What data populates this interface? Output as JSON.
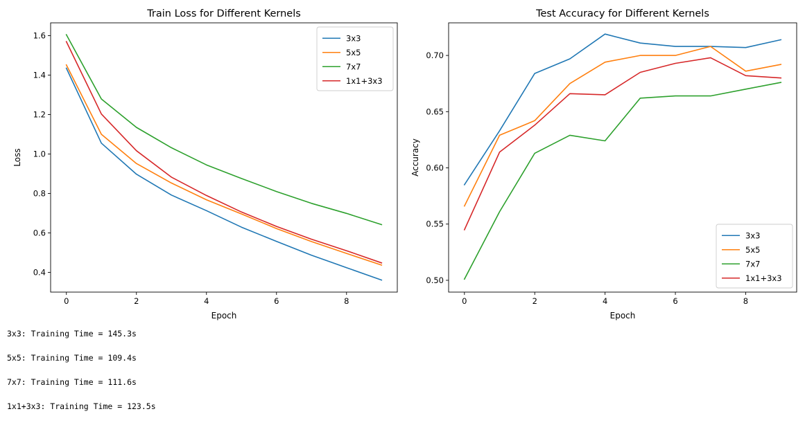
{
  "colors": {
    "3x3": "#1f77b4",
    "5x5": "#ff7f0e",
    "7x7": "#2ca02c",
    "1x1+3x3": "#d62728"
  },
  "chart_data": [
    {
      "type": "line",
      "title": "Train Loss for Different Kernels",
      "xlabel": "Epoch",
      "ylabel": "Loss",
      "x": [
        0,
        1,
        2,
        3,
        4,
        5,
        6,
        7,
        8,
        9
      ],
      "xlim": [
        -0.45,
        9.45
      ],
      "ylim": [
        0.3,
        1.665
      ],
      "xticks": [
        0,
        2,
        4,
        6,
        8
      ],
      "xtick_labels": [
        "0",
        "2",
        "4",
        "6",
        "8"
      ],
      "yticks": [
        0.4,
        0.6,
        0.8,
        1.0,
        1.2,
        1.4,
        1.6
      ],
      "ytick_labels": [
        "0.4",
        "0.6",
        "0.8",
        "1.0",
        "1.2",
        "1.4",
        "1.6"
      ],
      "legend_position": "upper right",
      "grid": false,
      "series": [
        {
          "name": "3x3",
          "color": "#1f77b4",
          "values": [
            1.435,
            1.055,
            0.898,
            0.792,
            0.713,
            0.629,
            0.557,
            0.487,
            0.424,
            0.361
          ]
        },
        {
          "name": "5x5",
          "color": "#ff7f0e",
          "values": [
            1.452,
            1.1,
            0.952,
            0.853,
            0.768,
            0.696,
            0.622,
            0.556,
            0.496,
            0.437
          ]
        },
        {
          "name": "7x7",
          "color": "#2ca02c",
          "values": [
            1.605,
            1.279,
            1.135,
            1.032,
            0.945,
            0.876,
            0.81,
            0.75,
            0.699,
            0.642
          ]
        },
        {
          "name": "1x1+3x3",
          "color": "#d62728",
          "values": [
            1.57,
            1.203,
            1.017,
            0.883,
            0.79,
            0.706,
            0.633,
            0.568,
            0.51,
            0.448
          ]
        }
      ]
    },
    {
      "type": "line",
      "title": "Test Accuracy for Different Kernels",
      "xlabel": "Epoch",
      "ylabel": "Accuracy",
      "x": [
        0,
        1,
        2,
        3,
        4,
        5,
        6,
        7,
        8,
        9
      ],
      "xlim": [
        -0.45,
        9.45
      ],
      "ylim": [
        0.4895,
        0.729
      ],
      "xticks": [
        0,
        2,
        4,
        6,
        8
      ],
      "xtick_labels": [
        "0",
        "2",
        "4",
        "6",
        "8"
      ],
      "yticks": [
        0.5,
        0.55,
        0.6,
        0.65,
        0.7
      ],
      "ytick_labels": [
        "0.50",
        "0.55",
        "0.60",
        "0.65",
        "0.70"
      ],
      "legend_position": "lower right",
      "grid": false,
      "series": [
        {
          "name": "3x3",
          "color": "#1f77b4",
          "values": [
            0.585,
            0.633,
            0.684,
            0.697,
            0.719,
            0.711,
            0.708,
            0.708,
            0.707,
            0.714
          ]
        },
        {
          "name": "5x5",
          "color": "#ff7f0e",
          "values": [
            0.566,
            0.629,
            0.642,
            0.675,
            0.694,
            0.7,
            0.7,
            0.708,
            0.686,
            0.692
          ]
        },
        {
          "name": "7x7",
          "color": "#2ca02c",
          "values": [
            0.501,
            0.561,
            0.613,
            0.629,
            0.624,
            0.662,
            0.664,
            0.664,
            0.67,
            0.676
          ]
        },
        {
          "name": "1x1+3x3",
          "color": "#d62728",
          "values": [
            0.545,
            0.614,
            0.638,
            0.666,
            0.665,
            0.685,
            0.693,
            0.698,
            0.682,
            0.68
          ]
        }
      ]
    }
  ],
  "output_log": [
    "3x3: Training Time = 145.3s",
    "5x5: Training Time = 109.4s",
    "7x7: Training Time = 111.6s",
    "1x1+3x3: Training Time = 123.5s"
  ]
}
